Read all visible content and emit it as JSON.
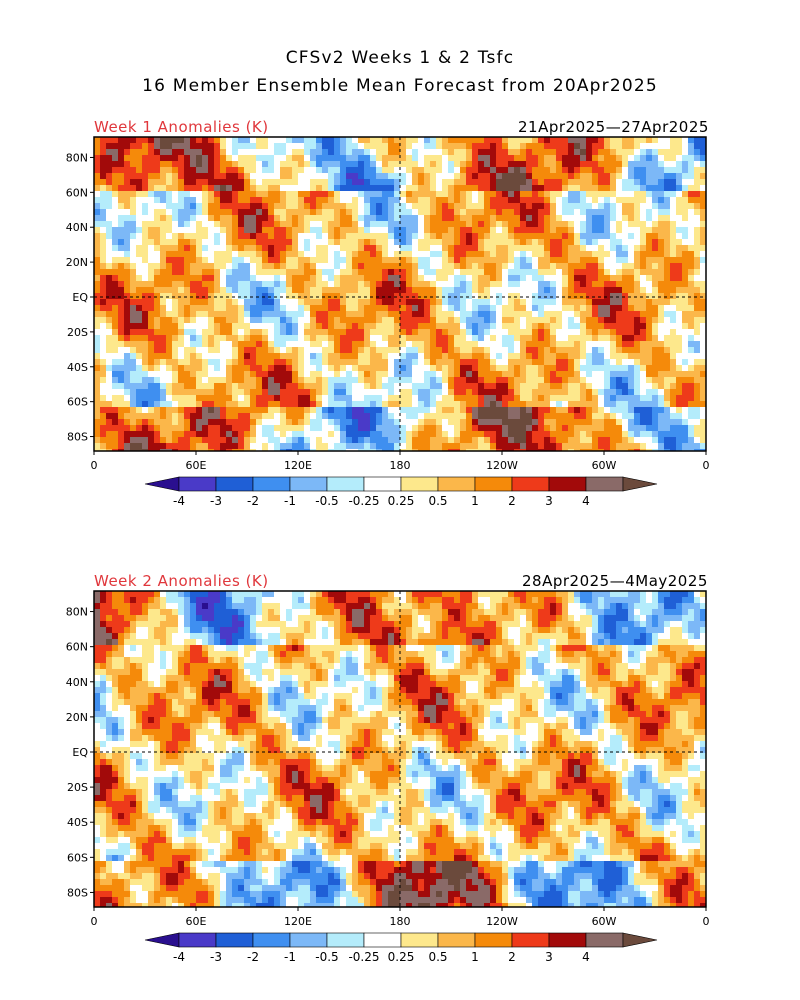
{
  "title_line1": "CFSv2 Weeks 1 & 2 Tsfc",
  "title_line2": "16 Member Ensemble Mean Forecast from 20Apr2025",
  "panels": [
    {
      "label": "Week 1 Anomalies (K)",
      "date_range": "21Apr2025—27Apr2025"
    },
    {
      "label": "Week 2 Anomalies (K)",
      "date_range": "28Apr2025—4May2025"
    }
  ],
  "lat_labels": [
    "80N",
    "60N",
    "40N",
    "20N",
    "EQ",
    "20S",
    "40S",
    "60S",
    "80S"
  ],
  "lon_labels": [
    "0",
    "60E",
    "120E",
    "180",
    "120W",
    "60W",
    "0"
  ],
  "colorbar": {
    "tick_labels": [
      "-4",
      "-3",
      "-2",
      "-1",
      "-0.5",
      "-0.25",
      "0.25",
      "0.5",
      "1",
      "2",
      "3",
      "4"
    ],
    "colors": [
      "#2a0f8f",
      "#4a3ac8",
      "#1f5fd6",
      "#3f8ff0",
      "#7cb8f7",
      "#b4ecfb",
      "#ffffff",
      "#fde88c",
      "#fbb74a",
      "#f58a0a",
      "#ee3a1a",
      "#a20a0a",
      "#8a6a68",
      "#6b4a3c"
    ]
  }
}
